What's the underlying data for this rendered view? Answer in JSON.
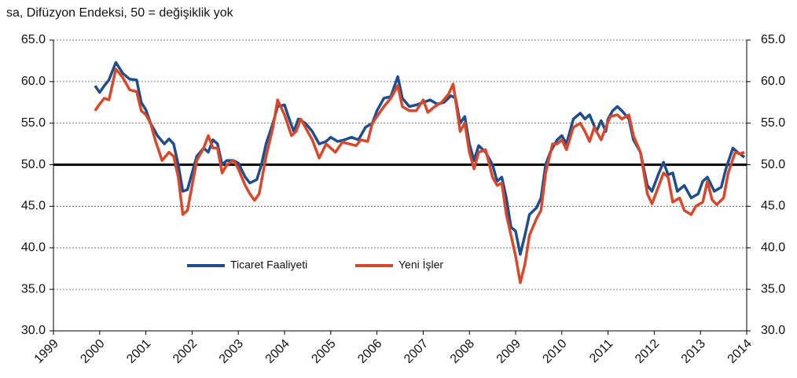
{
  "chart_data": {
    "type": "line",
    "title": "sa, Difüzyon Endeksi, 50 = değişiklik  yok",
    "xlim": [
      1999,
      2014
    ],
    "xticks": [
      1999,
      2000,
      2001,
      2002,
      2003,
      2004,
      2005,
      2006,
      2007,
      2008,
      2009,
      2010,
      2011,
      2012,
      2013,
      2014
    ],
    "ylim": [
      30,
      65
    ],
    "yticks": [
      {
        "value": 30,
        "label": "30.0"
      },
      {
        "value": 35,
        "label": "35.0"
      },
      {
        "value": 40,
        "label": "40.0"
      },
      {
        "value": 45,
        "label": "45.0"
      },
      {
        "value": 50,
        "label": "50.0"
      },
      {
        "value": 55,
        "label": "55.0"
      },
      {
        "value": 60,
        "label": "60.0"
      },
      {
        "value": 65,
        "label": "65.0"
      }
    ],
    "y2lim": [
      30,
      65
    ],
    "y2ticks": [
      {
        "value": 30,
        "label": "30.0"
      },
      {
        "value": 35,
        "label": "35.0"
      },
      {
        "value": 40,
        "label": "40.0"
      },
      {
        "value": 45,
        "label": "45.0"
      },
      {
        "value": 50,
        "label": "50.0"
      },
      {
        "value": 55,
        "label": "55.0"
      },
      {
        "value": 60,
        "label": "60.0"
      },
      {
        "value": 65,
        "label": "65.0"
      }
    ],
    "grid": true,
    "reference_line": 50,
    "series": [
      {
        "name": "Ticaret Faaliyeti",
        "color": "#1f4e8c",
        "x": [
          1999.9,
          2000.0,
          2000.1,
          2000.2,
          2000.35,
          2000.5,
          2000.65,
          2000.8,
          2000.9,
          2001.0,
          2001.1,
          2001.25,
          2001.4,
          2001.5,
          2001.6,
          2001.7,
          2001.8,
          2001.9,
          2002.0,
          2002.1,
          2002.25,
          2002.35,
          2002.45,
          2002.55,
          2002.65,
          2002.75,
          2002.9,
          2003.0,
          2003.15,
          2003.25,
          2003.4,
          2003.5,
          2003.6,
          2003.75,
          2003.85,
          2004.0,
          2004.1,
          2004.2,
          2004.3,
          2004.45,
          2004.6,
          2004.75,
          2004.9,
          2005.0,
          2005.15,
          2005.3,
          2005.45,
          2005.6,
          2005.75,
          2005.9,
          2006.0,
          2006.15,
          2006.3,
          2006.45,
          2006.55,
          2006.7,
          2006.85,
          2007.0,
          2007.15,
          2007.3,
          2007.45,
          2007.6,
          2007.7,
          2007.8,
          2007.9,
          2008.0,
          2008.1,
          2008.2,
          2008.35,
          2008.5,
          2008.6,
          2008.7,
          2008.8,
          2008.9,
          2009.0,
          2009.1,
          2009.2,
          2009.3,
          2009.45,
          2009.55,
          2009.65,
          2009.75,
          2009.9,
          2010.0,
          2010.1,
          2010.25,
          2010.4,
          2010.5,
          2010.6,
          2010.75,
          2010.85,
          2010.95,
          2011.0,
          2011.1,
          2011.2,
          2011.3,
          2011.45,
          2011.55,
          2011.7,
          2011.85,
          2011.95,
          2012.1,
          2012.2,
          2012.3,
          2012.4,
          2012.5,
          2012.65,
          2012.8,
          2012.95,
          2013.05,
          2013.15,
          2013.3,
          2013.45,
          2013.55,
          2013.7,
          2013.8,
          2013.95
        ],
        "values": [
          59.5,
          58.7,
          59.5,
          60.2,
          62.3,
          61.0,
          60.3,
          60.2,
          57.5,
          56.6,
          55.0,
          53.5,
          52.5,
          53.1,
          52.5,
          50.0,
          46.8,
          47.0,
          49.0,
          51.0,
          52.0,
          51.5,
          53.0,
          52.5,
          50.0,
          50.5,
          50.5,
          50.2,
          48.5,
          47.8,
          48.2,
          50.0,
          52.5,
          55.0,
          57.0,
          57.2,
          55.5,
          54.0,
          55.5,
          55.0,
          54.0,
          52.5,
          52.8,
          53.3,
          52.8,
          53.0,
          53.3,
          53.0,
          54.5,
          55.0,
          56.5,
          58.0,
          58.2,
          60.6,
          58.0,
          57.0,
          57.2,
          57.5,
          57.8,
          57.3,
          57.5,
          58.3,
          58.0,
          55.0,
          55.8,
          52.5,
          50.5,
          52.3,
          51.5,
          50.0,
          48.0,
          48.5,
          46.0,
          42.5,
          42.0,
          39.2,
          41.5,
          44.0,
          44.8,
          46.0,
          50.0,
          51.5,
          53.0,
          53.5,
          52.5,
          55.5,
          56.2,
          55.5,
          56.0,
          54.0,
          55.3,
          54.0,
          55.5,
          56.5,
          57.0,
          56.5,
          55.5,
          53.0,
          51.5,
          47.5,
          46.8,
          49.0,
          50.3,
          48.8,
          49.0,
          46.8,
          47.5,
          46.0,
          46.5,
          48.0,
          48.5,
          46.8,
          47.3,
          49.5,
          52.0,
          51.5,
          50.9
        ]
      },
      {
        "name": "Yeni İşler",
        "color": "#d9482b",
        "x": [
          1999.9,
          2000.0,
          2000.1,
          2000.2,
          2000.35,
          2000.5,
          2000.65,
          2000.8,
          2000.9,
          2001.0,
          2001.1,
          2001.2,
          2001.35,
          2001.5,
          2001.6,
          2001.7,
          2001.8,
          2001.9,
          2002.0,
          2002.1,
          2002.25,
          2002.35,
          2002.45,
          2002.55,
          2002.65,
          2002.75,
          2002.9,
          2003.0,
          2003.15,
          2003.25,
          2003.35,
          2003.45,
          2003.6,
          2003.75,
          2003.85,
          2004.0,
          2004.15,
          2004.25,
          2004.35,
          2004.5,
          2004.6,
          2004.75,
          2004.9,
          2005.0,
          2005.1,
          2005.25,
          2005.4,
          2005.55,
          2005.65,
          2005.8,
          2005.9,
          2006.0,
          2006.15,
          2006.3,
          2006.45,
          2006.55,
          2006.7,
          2006.85,
          2007.0,
          2007.1,
          2007.25,
          2007.4,
          2007.55,
          2007.65,
          2007.8,
          2007.9,
          2008.0,
          2008.1,
          2008.2,
          2008.35,
          2008.5,
          2008.6,
          2008.7,
          2008.8,
          2008.9,
          2009.0,
          2009.1,
          2009.2,
          2009.3,
          2009.45,
          2009.55,
          2009.65,
          2009.8,
          2009.9,
          2010.0,
          2010.1,
          2010.25,
          2010.4,
          2010.5,
          2010.6,
          2010.7,
          2010.85,
          2010.95,
          2011.05,
          2011.2,
          2011.3,
          2011.45,
          2011.55,
          2011.7,
          2011.85,
          2011.95,
          2012.1,
          2012.2,
          2012.3,
          2012.4,
          2012.55,
          2012.65,
          2012.8,
          2012.9,
          2013.05,
          2013.15,
          2013.25,
          2013.35,
          2013.5,
          2013.6,
          2013.75,
          2013.85,
          2013.95
        ],
        "values": [
          56.5,
          57.3,
          58.0,
          57.8,
          61.5,
          60.5,
          59.0,
          58.8,
          56.5,
          56.0,
          55.0,
          53.0,
          50.5,
          51.5,
          51.0,
          48.5,
          44.0,
          44.5,
          47.5,
          50.5,
          52.0,
          53.5,
          52.0,
          52.0,
          49.0,
          50.0,
          50.5,
          49.5,
          47.5,
          46.5,
          45.7,
          46.5,
          51.0,
          54.5,
          57.8,
          56.0,
          53.5,
          54.0,
          55.5,
          54.0,
          53.0,
          50.8,
          52.5,
          52.0,
          51.5,
          52.7,
          52.5,
          52.3,
          53.0,
          52.8,
          55.0,
          55.8,
          57.0,
          58.0,
          59.5,
          57.0,
          56.5,
          56.5,
          57.8,
          56.3,
          57.0,
          57.5,
          58.5,
          59.7,
          54.0,
          55.0,
          51.5,
          49.5,
          51.5,
          51.8,
          48.5,
          47.5,
          47.8,
          44.0,
          41.5,
          39.0,
          35.8,
          38.0,
          41.5,
          43.5,
          44.5,
          49.0,
          52.5,
          52.5,
          53.0,
          51.8,
          54.5,
          55.0,
          54.0,
          52.8,
          54.5,
          53.0,
          54.5,
          55.8,
          56.0,
          55.5,
          56.0,
          53.5,
          51.5,
          46.5,
          45.3,
          47.5,
          49.0,
          48.5,
          45.5,
          46.0,
          44.5,
          44.0,
          45.0,
          45.5,
          48.0,
          45.8,
          45.2,
          46.0,
          49.0,
          51.5,
          51.3,
          51.5
        ]
      }
    ]
  }
}
